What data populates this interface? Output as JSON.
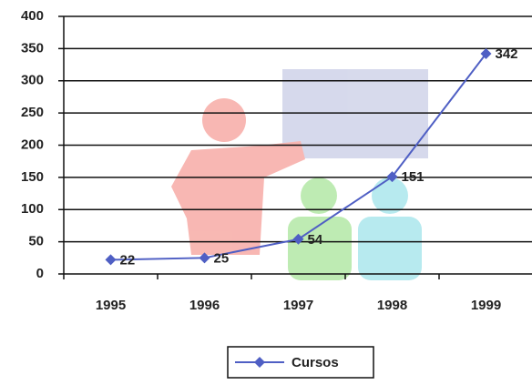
{
  "chart_data": {
    "type": "line",
    "categories": [
      "1995",
      "1996",
      "1997",
      "1998",
      "1999"
    ],
    "series": [
      {
        "name": "Cursos",
        "color": "#4f5fc4",
        "values": [
          22,
          25,
          54,
          151,
          342
        ]
      }
    ],
    "ylim": [
      0,
      400
    ],
    "yticks": [
      0,
      50,
      100,
      150,
      200,
      250,
      300,
      350,
      400
    ],
    "grid": true,
    "legend": "bottom"
  }
}
